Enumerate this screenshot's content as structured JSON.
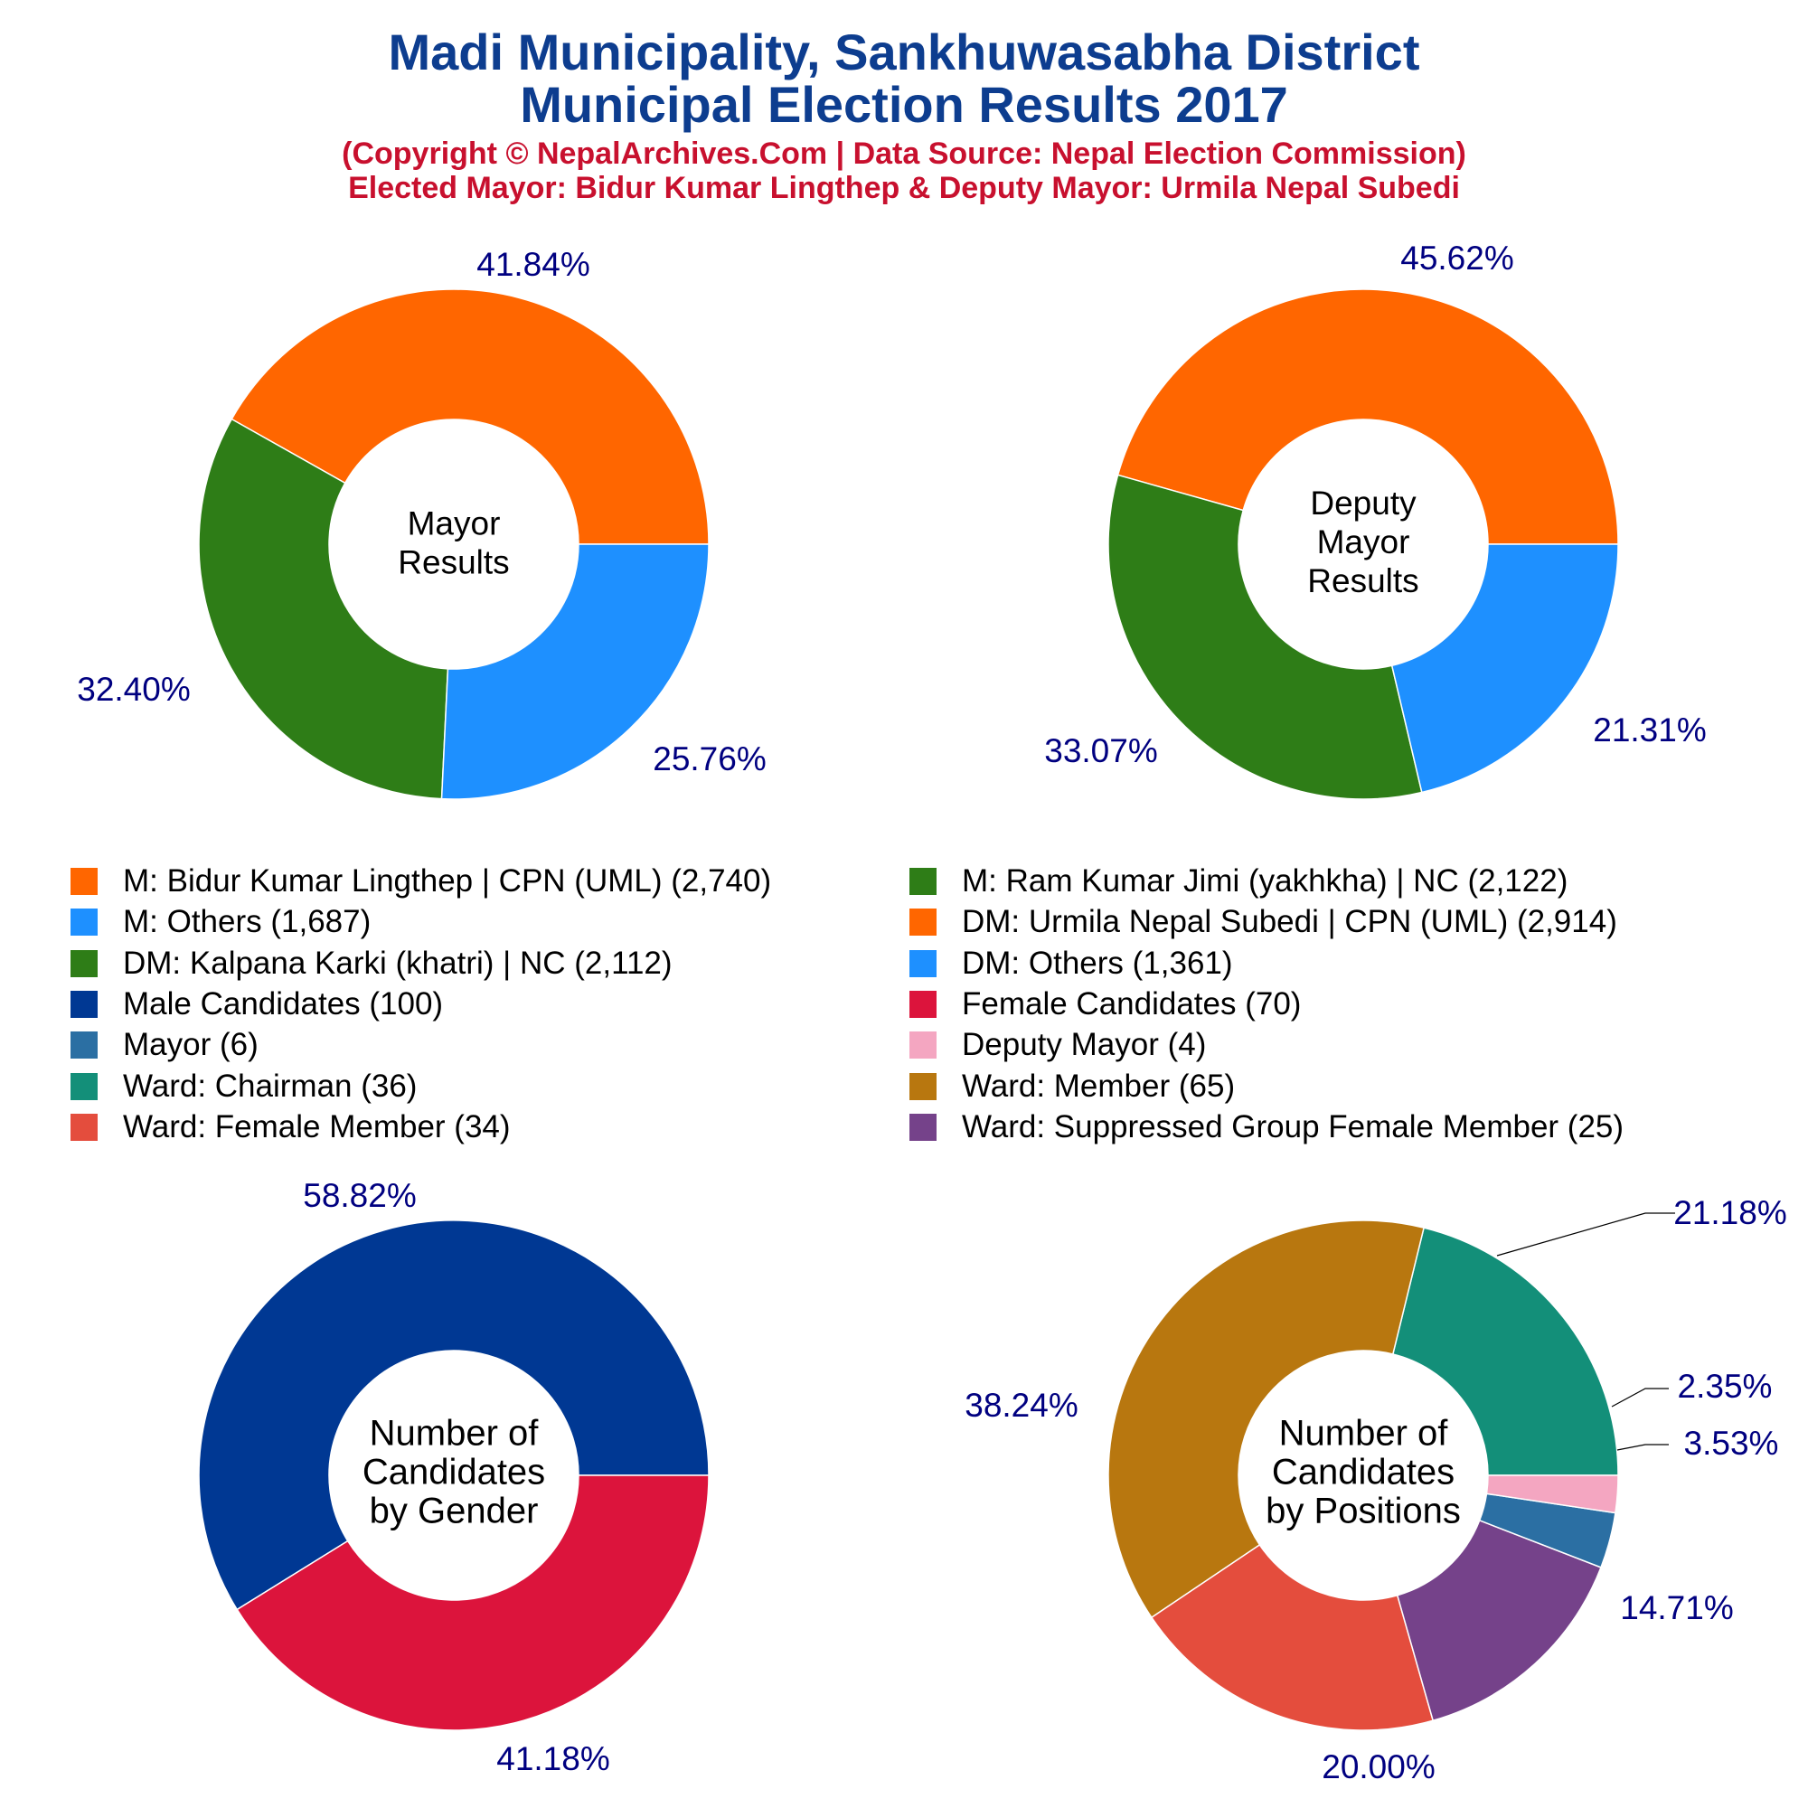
{
  "title_line1": "Madi Municipality, Sankhuwasabha District",
  "title_line2": "Municipal Election Results 2017",
  "subtitle_line1": "(Copyright © NepalArchives.Com | Data Source: Nepal Election Commission)",
  "subtitle_line2": "Elected Mayor: Bidur Kumar Lingthep & Deputy Mayor: Urmila Nepal Subedi",
  "colors": {
    "title": "#0d3d8f",
    "subtitle": "#c8102e",
    "percent_label": "#000080"
  },
  "legend": [
    {
      "label": "M: Bidur Kumar Lingthep | CPN (UML) (2,740)",
      "color": "#ff6600"
    },
    {
      "label": "M: Ram Kumar Jimi (yakhkha) | NC (2,122)",
      "color": "#2e7d17"
    },
    {
      "label": "M: Others (1,687)",
      "color": "#1e90ff"
    },
    {
      "label": "DM: Urmila Nepal Subedi | CPN (UML) (2,914)",
      "color": "#ff6600"
    },
    {
      "label": "DM: Kalpana Karki (khatri) | NC (2,112)",
      "color": "#2e7d17"
    },
    {
      "label": "DM: Others (1,361)",
      "color": "#1e90ff"
    },
    {
      "label": "Male Candidates (100)",
      "color": "#003893"
    },
    {
      "label": "Female Candidates (70)",
      "color": "#dc143c"
    },
    {
      "label": "Mayor (6)",
      "color": "#2b6fa3"
    },
    {
      "label": "Deputy Mayor (4)",
      "color": "#f4a6c1"
    },
    {
      "label": "Ward: Chairman (36)",
      "color": "#138f79"
    },
    {
      "label": "Ward: Member (65)",
      "color": "#b8770f"
    },
    {
      "label": "Ward: Female Member (34)",
      "color": "#e44d3d"
    },
    {
      "label": "Ward: Suppressed Group Female Member (25)",
      "color": "#75428a"
    }
  ],
  "chart_data": [
    {
      "type": "pie",
      "center_label": [
        "Mayor",
        "Results"
      ],
      "slices": [
        {
          "name": "M: Bidur Kumar Lingthep | CPN (UML)",
          "value": 2740,
          "label": "41.84%",
          "color": "#ff6600"
        },
        {
          "name": "M: Ram Kumar Jimi (yakhkha) | NC",
          "value": 2122,
          "label": "32.40%",
          "color": "#2e7d17"
        },
        {
          "name": "M: Others",
          "value": 1687,
          "label": "25.76%",
          "color": "#1e90ff"
        }
      ]
    },
    {
      "type": "pie",
      "center_label": [
        "Deputy",
        "Mayor",
        "Results"
      ],
      "slices": [
        {
          "name": "DM: Urmila Nepal Subedi | CPN (UML)",
          "value": 2914,
          "label": "45.62%",
          "color": "#ff6600"
        },
        {
          "name": "DM: Kalpana Karki (khatri) | NC",
          "value": 2112,
          "label": "33.07%",
          "color": "#2e7d17"
        },
        {
          "name": "DM: Others",
          "value": 1361,
          "label": "21.31%",
          "color": "#1e90ff"
        }
      ]
    },
    {
      "type": "pie",
      "center_label": [
        "Number of",
        "Candidates",
        "by Gender"
      ],
      "slices": [
        {
          "name": "Male Candidates",
          "value": 100,
          "label": "58.82%",
          "color": "#003893"
        },
        {
          "name": "Female Candidates",
          "value": 70,
          "label": "41.18%",
          "color": "#dc143c"
        }
      ]
    },
    {
      "type": "pie",
      "center_label": [
        "Number of",
        "Candidates",
        "by Positions"
      ],
      "slices": [
        {
          "name": "Ward: Chairman",
          "value": 36,
          "label": "21.18%",
          "color": "#138f79"
        },
        {
          "name": "Ward: Member",
          "value": 65,
          "label": "38.24%",
          "color": "#b8770f"
        },
        {
          "name": "Ward: Female Member",
          "value": 34,
          "label": "20.00%",
          "color": "#e44d3d"
        },
        {
          "name": "Ward: Suppressed Group Female Member",
          "value": 25,
          "label": "14.71%",
          "color": "#75428a"
        },
        {
          "name": "Mayor",
          "value": 6,
          "label": "3.53%",
          "color": "#2b6fa3"
        },
        {
          "name": "Deputy Mayor",
          "value": 4,
          "label": "2.35%",
          "color": "#f4a6c1"
        }
      ]
    }
  ]
}
